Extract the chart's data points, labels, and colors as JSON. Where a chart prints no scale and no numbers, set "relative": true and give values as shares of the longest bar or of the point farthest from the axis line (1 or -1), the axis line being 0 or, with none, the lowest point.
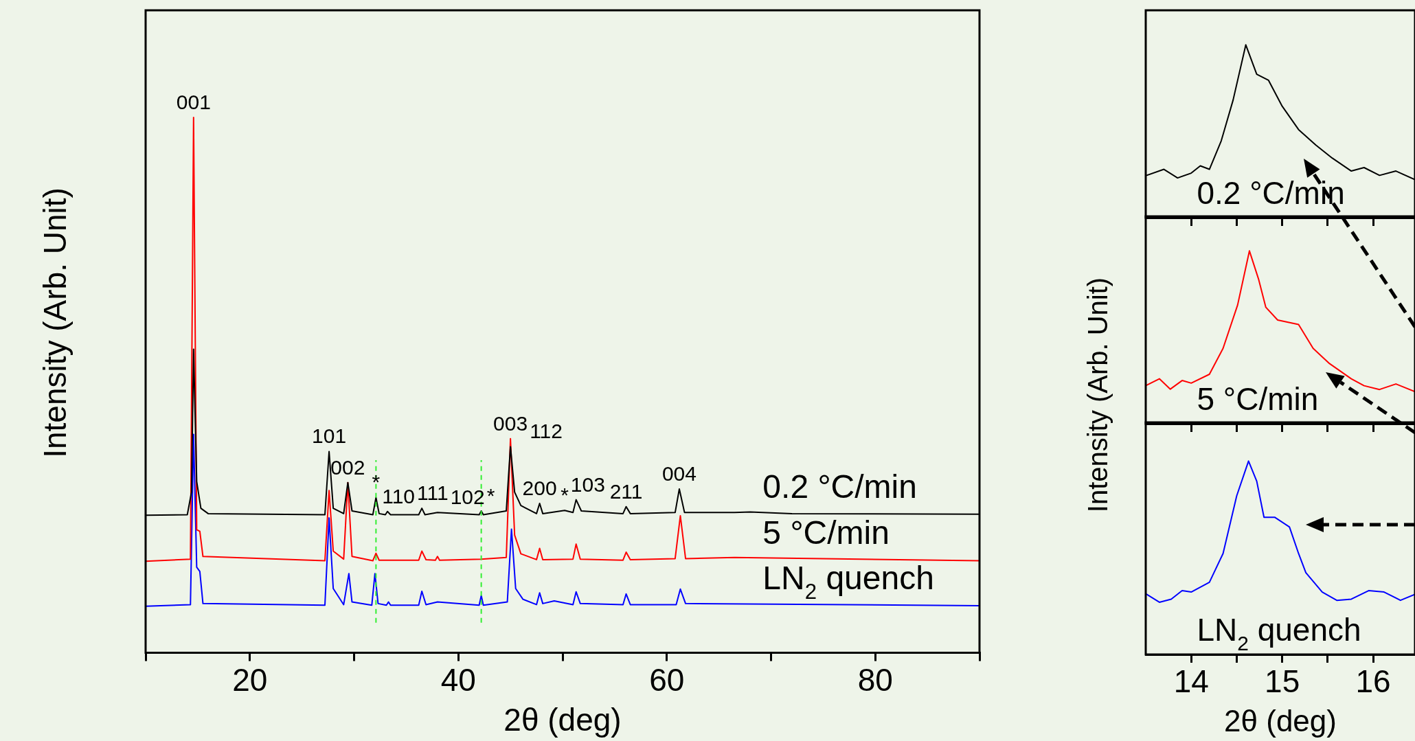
{
  "chart_data": [
    {
      "type": "line",
      "relative": true,
      "xlabel": "2θ (deg)",
      "ylabel": "Intensity (Arb. Unit)",
      "xlim": [
        10,
        90
      ],
      "xticks": [
        {
          "value": 10,
          "label": null
        },
        20,
        {
          "value": 30,
          "label": null
        },
        40,
        {
          "value": 50,
          "label": null
        },
        60,
        {
          "value": 70,
          "label": null
        },
        80,
        {
          "value": 90,
          "label": null
        }
      ],
      "series": [
        {
          "name": "0.2 °C/min",
          "color": "#000000",
          "x": [
            10,
            14.0,
            14.4,
            14.6,
            14.9,
            15.3,
            16,
            27.2,
            27.6,
            28.0,
            29.0,
            29.4,
            29.8,
            31.8,
            32.1,
            32.4,
            33.0,
            33.2,
            33.5,
            36.2,
            36.5,
            36.8,
            38.0,
            42.0,
            42.2,
            42.4,
            44.6,
            45.0,
            45.4,
            46,
            47.5,
            47.8,
            48.1,
            50.2,
            51.0,
            51.3,
            51.8,
            55.8,
            56.1,
            56.5,
            60.8,
            61.2,
            61.7,
            66.5,
            68,
            72,
            90
          ],
          "values": [
            0.257,
            0.258,
            0.3,
            0.567,
            0.32,
            0.27,
            0.26,
            0.258,
            0.376,
            0.27,
            0.26,
            0.318,
            0.265,
            0.258,
            0.29,
            0.26,
            0.258,
            0.264,
            0.258,
            0.258,
            0.27,
            0.258,
            0.262,
            0.258,
            0.265,
            0.258,
            0.265,
            0.385,
            0.3,
            0.275,
            0.26,
            0.279,
            0.26,
            0.266,
            0.262,
            0.286,
            0.265,
            0.26,
            0.273,
            0.26,
            0.262,
            0.306,
            0.262,
            0.262,
            0.263,
            0.26,
            0.259
          ]
        },
        {
          "name": "5 °C/min",
          "color": "#ff0000",
          "x": [
            10,
            14.3,
            14.6,
            14.9,
            15.2,
            15.5,
            27.2,
            27.6,
            28.0,
            29.0,
            29.4,
            29.8,
            31.8,
            32.1,
            32.4,
            36.2,
            36.5,
            36.9,
            37.8,
            38,
            38.2,
            42.2,
            44.6,
            45.0,
            45.4,
            46,
            47.5,
            47.8,
            48.1,
            51.0,
            51.3,
            51.7,
            55.8,
            56.1,
            56.5,
            60.8,
            61.3,
            61.8,
            66.5,
            90
          ],
          "values": [
            0.171,
            0.175,
            1.0,
            0.23,
            0.227,
            0.18,
            0.172,
            0.303,
            0.19,
            0.175,
            0.318,
            0.18,
            0.172,
            0.186,
            0.173,
            0.173,
            0.19,
            0.174,
            0.173,
            0.18,
            0.173,
            0.175,
            0.178,
            0.4,
            0.22,
            0.185,
            0.174,
            0.195,
            0.174,
            0.175,
            0.203,
            0.175,
            0.173,
            0.188,
            0.174,
            0.176,
            0.256,
            0.176,
            0.178,
            0.172
          ]
        },
        {
          "name": "LN$_{2}$ quench",
          "color": "#0000ff",
          "x": [
            10,
            14.3,
            14.6,
            14.9,
            15.2,
            15.5,
            27.2,
            27.6,
            28.0,
            29.0,
            29.5,
            29.8,
            31.7,
            32.0,
            32.3,
            33.1,
            33.3,
            33.5,
            36.2,
            36.5,
            36.9,
            38,
            42.0,
            42.2,
            42.4,
            44.7,
            45.1,
            45.5,
            46.2,
            47.5,
            47.8,
            48.1,
            49.2,
            51.0,
            51.3,
            51.7,
            55.8,
            56.1,
            56.5,
            60.9,
            61.3,
            61.8,
            90
          ],
          "values": [
            0.087,
            0.09,
            0.408,
            0.16,
            0.152,
            0.092,
            0.089,
            0.252,
            0.12,
            0.09,
            0.148,
            0.095,
            0.089,
            0.148,
            0.092,
            0.089,
            0.095,
            0.089,
            0.089,
            0.115,
            0.09,
            0.095,
            0.089,
            0.107,
            0.089,
            0.095,
            0.231,
            0.12,
            0.1,
            0.09,
            0.112,
            0.092,
            0.097,
            0.09,
            0.114,
            0.092,
            0.09,
            0.11,
            0.09,
            0.09,
            0.119,
            0.092,
            0.088
          ]
        }
      ],
      "ref_lines": [
        {
          "axis": "x",
          "value": 32.1,
          "color": "#33ee33",
          "line_style": "dashed"
        },
        {
          "axis": "x",
          "value": 42.2,
          "color": "#33ee33",
          "line_style": "dashed"
        }
      ],
      "annotations": [
        {
          "text": "001",
          "x": 14.6,
          "y": 1.0
        },
        {
          "text": "101",
          "x": 27.6,
          "y": 0.376
        },
        {
          "text": "002",
          "x": 29.4,
          "y": 0.318
        },
        {
          "text": "*",
          "x": 32.1,
          "y": 0.29
        },
        {
          "text": "110",
          "x": 33.2,
          "y": 0.264
        },
        {
          "text": "111",
          "x": 36.5,
          "y": 0.27
        },
        {
          "text": "102",
          "x": 38.0,
          "y": 0.262
        },
        {
          "text": "*",
          "x": 42.2,
          "y": 0.265
        },
        {
          "text": "003",
          "x": 45.0,
          "y": 0.4
        },
        {
          "text": "112",
          "x": 45.0,
          "y": 0.385
        },
        {
          "text": "200",
          "x": 47.8,
          "y": 0.279
        },
        {
          "text": "*",
          "x": 50.2,
          "y": 0.266
        },
        {
          "text": "103",
          "x": 51.3,
          "y": 0.286
        },
        {
          "text": "211",
          "x": 56.1,
          "y": 0.273
        },
        {
          "text": "004",
          "x": 61.2,
          "y": 0.306
        }
      ]
    },
    {
      "type": "line",
      "relative": true,
      "xlim": [
        13.5,
        16.46
      ],
      "xticks": [
        14,
        {
          "value": 14.5,
          "label": null
        },
        15,
        {
          "value": 15.5,
          "label": null
        },
        16
      ],
      "tick_labels": false,
      "series": [
        {
          "name": "0.2 °C/min",
          "color": "#000000",
          "x": [
            13.51,
            13.7,
            13.85,
            14.0,
            14.1,
            14.2,
            14.33,
            14.46,
            14.6,
            14.72,
            14.85,
            15.0,
            15.18,
            15.37,
            15.55,
            15.76,
            15.9,
            16.07,
            16.25,
            16.46
          ],
          "values": [
            0.245,
            0.28,
            0.23,
            0.258,
            0.3,
            0.28,
            0.445,
            0.68,
            1.0,
            0.83,
            0.795,
            0.645,
            0.51,
            0.42,
            0.345,
            0.27,
            0.29,
            0.245,
            0.27,
            0.22
          ]
        }
      ]
    },
    {
      "type": "line",
      "relative": true,
      "ylabel": "Intensity (Arb. Unit)",
      "xlim": [
        13.5,
        16.46
      ],
      "xticks": [
        14,
        {
          "value": 14.5,
          "label": null
        },
        15,
        {
          "value": 15.5,
          "label": null
        },
        16
      ],
      "tick_labels": false,
      "series": [
        {
          "name": "5 °C/min",
          "color": "#ff0000",
          "x": [
            13.51,
            13.65,
            13.77,
            13.9,
            14.0,
            14.2,
            14.35,
            14.51,
            14.64,
            14.74,
            14.82,
            14.95,
            15.18,
            15.34,
            15.52,
            15.76,
            15.9,
            16.07,
            16.25,
            16.46
          ],
          "values": [
            0.223,
            0.26,
            0.2,
            0.25,
            0.235,
            0.286,
            0.436,
            0.687,
            1.0,
            0.837,
            0.674,
            0.6,
            0.574,
            0.436,
            0.348,
            0.26,
            0.22,
            0.198,
            0.23,
            0.185
          ]
        }
      ]
    },
    {
      "type": "line",
      "relative": true,
      "xlabel": "2θ (deg)",
      "xlim": [
        13.5,
        16.46
      ],
      "xticks": [
        14,
        {
          "value": 14.5,
          "label": null
        },
        15,
        {
          "value": 15.5,
          "label": null
        },
        16
      ],
      "tick_labels": "x",
      "series": [
        {
          "name": "LN$_{2}$ quench",
          "color": "#0000ff",
          "x": [
            13.51,
            13.65,
            13.78,
            13.9,
            14.0,
            14.2,
            14.35,
            14.5,
            14.63,
            14.72,
            14.8,
            14.92,
            15.08,
            15.18,
            15.26,
            15.44,
            15.6,
            15.76,
            15.95,
            16.12,
            16.3,
            16.46
          ],
          "values": [
            0.311,
            0.27,
            0.286,
            0.33,
            0.323,
            0.373,
            0.522,
            0.82,
            1.0,
            0.896,
            0.709,
            0.709,
            0.659,
            0.522,
            0.423,
            0.323,
            0.28,
            0.286,
            0.33,
            0.323,
            0.28,
            0.311
          ]
        }
      ]
    }
  ]
}
